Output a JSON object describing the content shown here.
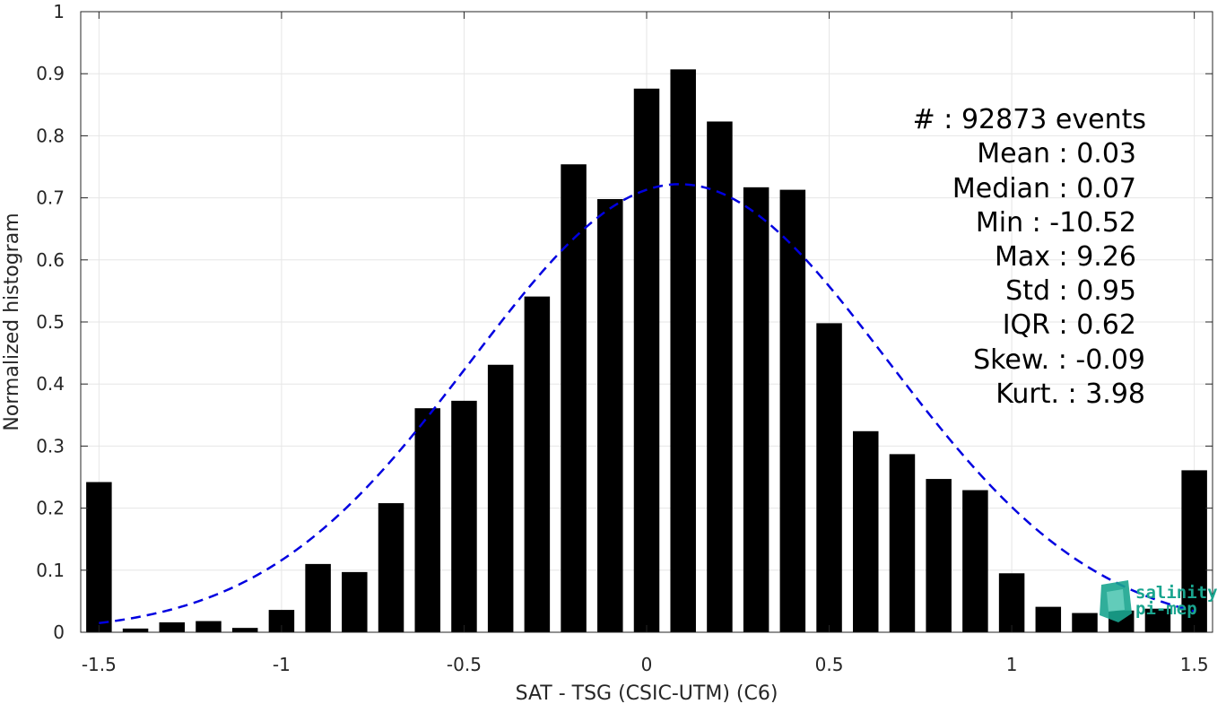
{
  "chart_data": {
    "type": "bar",
    "xlabel": "SAT - TSG (CSIC-UTM) (C6)",
    "ylabel": "Normalized histogram",
    "xlim": [
      -1.55,
      1.55
    ],
    "ylim": [
      0,
      1
    ],
    "xticks": [
      "-1.5",
      "-1",
      "-0.5",
      "0",
      "0.5",
      "1",
      "1.5"
    ],
    "yticks": [
      "0",
      "0.1",
      "0.2",
      "0.3",
      "0.4",
      "0.5",
      "0.6",
      "0.7",
      "0.8",
      "0.9",
      "1"
    ],
    "grid": true,
    "bar_width": 0.07,
    "bars": {
      "x": [
        -1.5,
        -1.4,
        -1.3,
        -1.2,
        -1.1,
        -1.0,
        -0.9,
        -0.8,
        -0.7,
        -0.6,
        -0.5,
        -0.4,
        -0.3,
        -0.2,
        -0.1,
        0.0,
        0.1,
        0.2,
        0.3,
        0.4,
        0.5,
        0.6,
        0.7,
        0.8,
        0.9,
        1.0,
        1.1,
        1.2,
        1.3,
        1.4,
        1.5
      ],
      "values": [
        0.242,
        0.006,
        0.016,
        0.018,
        0.007,
        0.036,
        0.11,
        0.097,
        0.208,
        0.361,
        0.373,
        0.431,
        0.541,
        0.754,
        0.698,
        0.876,
        0.907,
        0.823,
        0.717,
        0.713,
        0.498,
        0.324,
        0.287,
        0.247,
        0.229,
        0.095,
        0.041,
        0.031,
        0.035,
        0.038,
        0.261
      ],
      "color": "#000000"
    },
    "fit_curve": {
      "style": "dashed",
      "color": "#0000e0",
      "mean": 0.09,
      "std": 0.57,
      "peak": 0.722,
      "x_range": [
        -1.5,
        1.5
      ]
    }
  },
  "stats": {
    "events": "#  : 92873 events",
    "mean": "Mean : 0.03",
    "median": "Median : 0.07",
    "min": "Min : -10.52",
    "max": "Max : 9.26",
    "std": "Std : 0.95",
    "iqr": "IQR : 0.62",
    "skew": "Skew. : -0.09",
    "kurt": "Kurt. : 3.98"
  },
  "logo": {
    "line1": "salinity",
    "line2": "pi-mep",
    "color": "#1aa58f"
  }
}
